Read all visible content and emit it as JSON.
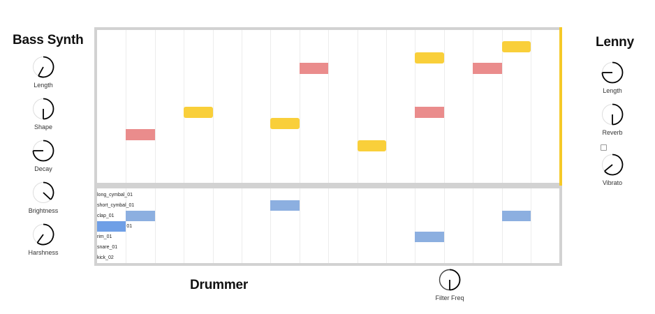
{
  "bass_synth": {
    "title": "Bass Synth",
    "knobs": [
      {
        "label": "Length",
        "value": 0.58
      },
      {
        "label": "Shape",
        "value": 0.5
      },
      {
        "label": "Decay",
        "value": 0.75
      },
      {
        "label": "Brightness",
        "value": 0.37
      },
      {
        "label": "Harshness",
        "value": 0.6
      }
    ]
  },
  "lenny": {
    "title": "Lenny",
    "knobs": [
      {
        "label": "Length",
        "value": 0.75
      },
      {
        "label": "Reverb",
        "value": 0.5
      },
      {
        "label": "Vibrato",
        "value": 0.64
      }
    ],
    "vibrato_checkbox_checked": false
  },
  "drummer": {
    "title": "Drummer",
    "knob": {
      "label": "Filter Freq",
      "value": 0.5
    },
    "tracks": [
      {
        "label": "long_cymbal_01",
        "steps": []
      },
      {
        "label": "short_cymbal_01",
        "steps": [
          6
        ]
      },
      {
        "label": "clap_01",
        "steps": [
          1,
          14
        ]
      },
      {
        "label": "01",
        "steps": [
          0
        ]
      },
      {
        "label": "rim_01",
        "steps": [
          11
        ]
      },
      {
        "label": "snare_01",
        "steps": []
      },
      {
        "label": "kick_02",
        "steps": []
      }
    ],
    "highlighted_cell": {
      "track": 3,
      "step": 0
    }
  },
  "melody": {
    "steps": 16,
    "notes": [
      {
        "step": 1,
        "row": 9,
        "color": "pink"
      },
      {
        "step": 3,
        "row": 7,
        "color": "yellow"
      },
      {
        "step": 6,
        "row": 8,
        "color": "yellow"
      },
      {
        "step": 7,
        "row": 3,
        "color": "pink"
      },
      {
        "step": 9,
        "row": 10,
        "color": "yellow"
      },
      {
        "step": 11,
        "row": 2,
        "color": "yellow"
      },
      {
        "step": 11,
        "row": 7,
        "color": "pink"
      },
      {
        "step": 13,
        "row": 3,
        "color": "pink"
      },
      {
        "step": 14,
        "row": 1,
        "color": "yellow"
      }
    ]
  },
  "colors": {
    "pink_note": "#ea8c8c",
    "yellow_note": "#f9cf3a",
    "drum_step": "#8cafe0",
    "drum_step_active": "#6f9fe6",
    "playhead": "#f5c928"
  }
}
